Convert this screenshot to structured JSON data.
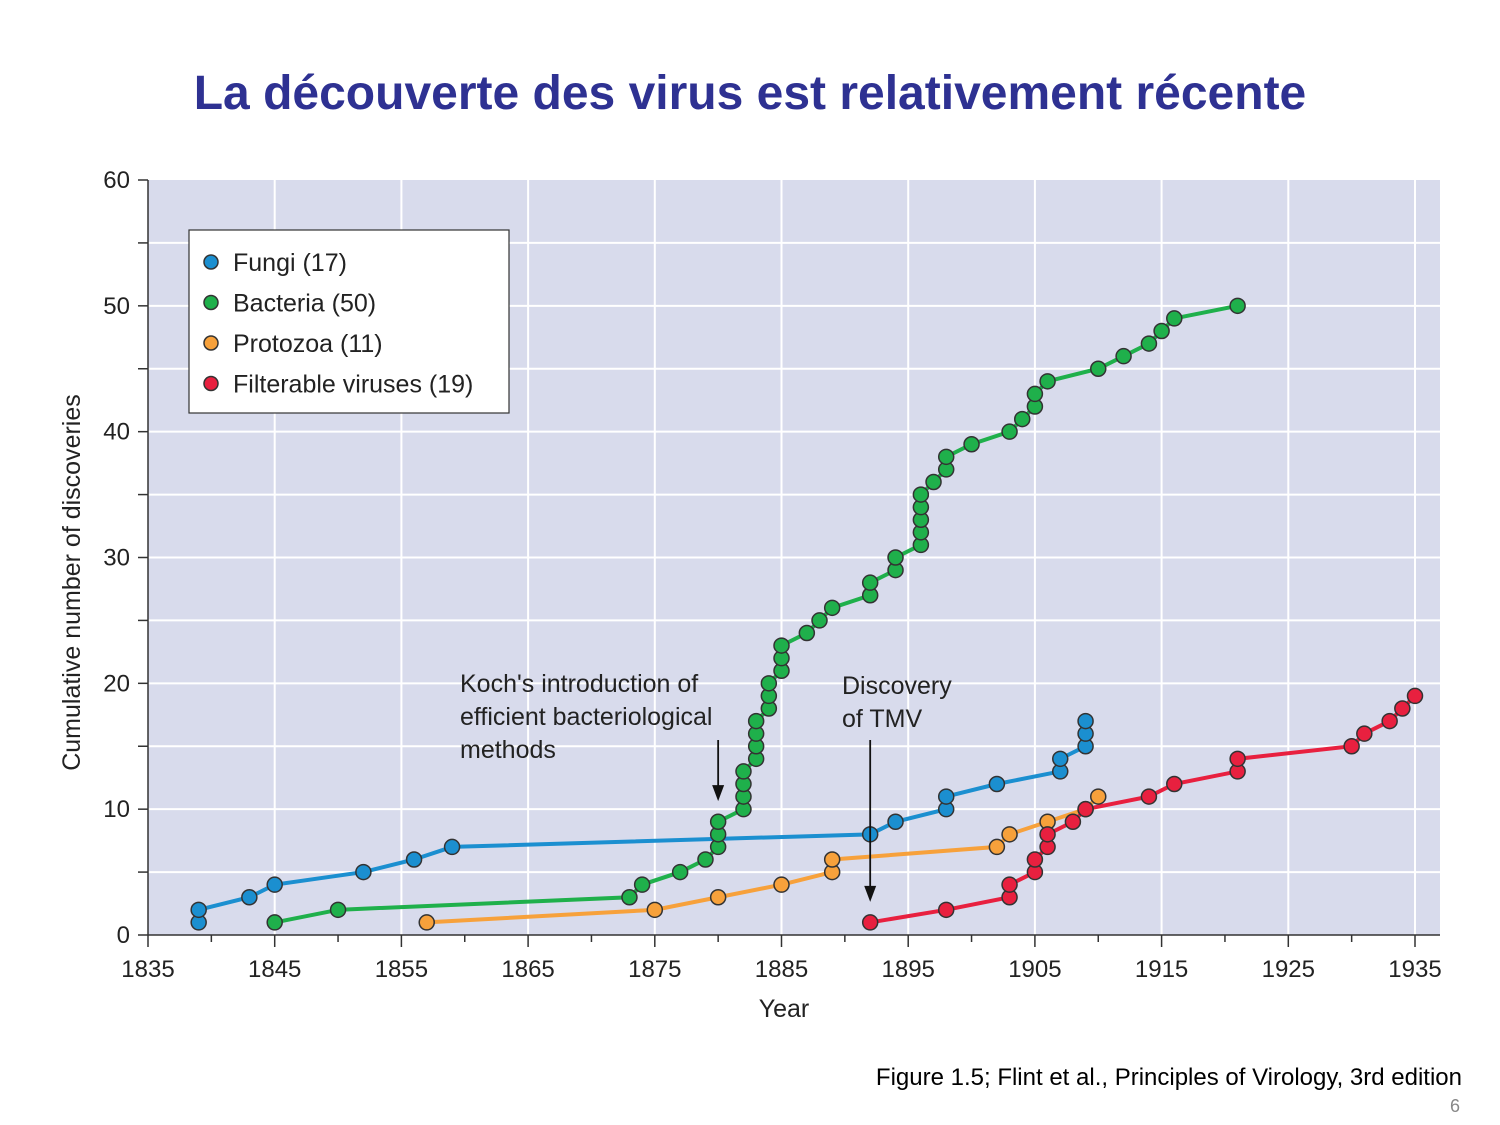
{
  "slide": {
    "title": "La découverte des virus est relativement récente",
    "caption": "Figure 1.5; Flint et al., Principles of Virology, 3rd edition",
    "slide_number": "6"
  },
  "chart_data": {
    "type": "line",
    "xlabel": "Year",
    "ylabel": "Cumulative number of discoveries",
    "xlim": [
      1835,
      1937
    ],
    "ylim": [
      0,
      60
    ],
    "xticks": [
      1835,
      1845,
      1855,
      1865,
      1875,
      1885,
      1895,
      1905,
      1915,
      1925,
      1935
    ],
    "yticks": [
      0,
      10,
      20,
      30,
      40,
      50,
      60
    ],
    "grid": true,
    "background": "#d8dbec",
    "legend_position": "top-left",
    "series": [
      {
        "name": "Fungi (17)",
        "color": "#1b8fd0",
        "points": [
          [
            1839,
            1
          ],
          [
            1839,
            2
          ],
          [
            1843,
            3
          ],
          [
            1845,
            4
          ],
          [
            1852,
            5
          ],
          [
            1856,
            6
          ],
          [
            1859,
            7
          ],
          [
            1892,
            8
          ],
          [
            1894,
            9
          ],
          [
            1898,
            10
          ],
          [
            1898,
            11
          ],
          [
            1902,
            12
          ],
          [
            1907,
            13
          ],
          [
            1907,
            14
          ],
          [
            1909,
            15
          ],
          [
            1909,
            16
          ],
          [
            1909,
            17
          ]
        ]
      },
      {
        "name": "Bacteria (50)",
        "color": "#1fb04b",
        "points": [
          [
            1845,
            1
          ],
          [
            1850,
            2
          ],
          [
            1873,
            3
          ],
          [
            1874,
            4
          ],
          [
            1877,
            5
          ],
          [
            1879,
            6
          ],
          [
            1880,
            7
          ],
          [
            1880,
            8
          ],
          [
            1880,
            9
          ],
          [
            1882,
            10
          ],
          [
            1882,
            11
          ],
          [
            1882,
            12
          ],
          [
            1882,
            13
          ],
          [
            1883,
            14
          ],
          [
            1883,
            15
          ],
          [
            1883,
            16
          ],
          [
            1883,
            17
          ],
          [
            1884,
            18
          ],
          [
            1884,
            19
          ],
          [
            1884,
            20
          ],
          [
            1885,
            21
          ],
          [
            1885,
            22
          ],
          [
            1885,
            23
          ],
          [
            1887,
            24
          ],
          [
            1888,
            25
          ],
          [
            1889,
            26
          ],
          [
            1892,
            27
          ],
          [
            1892,
            28
          ],
          [
            1894,
            29
          ],
          [
            1894,
            30
          ],
          [
            1896,
            31
          ],
          [
            1896,
            32
          ],
          [
            1896,
            33
          ],
          [
            1896,
            34
          ],
          [
            1896,
            35
          ],
          [
            1897,
            36
          ],
          [
            1898,
            37
          ],
          [
            1898,
            38
          ],
          [
            1900,
            39
          ],
          [
            1903,
            40
          ],
          [
            1904,
            41
          ],
          [
            1905,
            42
          ],
          [
            1905,
            43
          ],
          [
            1906,
            44
          ],
          [
            1910,
            45
          ],
          [
            1912,
            46
          ],
          [
            1914,
            47
          ],
          [
            1915,
            48
          ],
          [
            1916,
            49
          ],
          [
            1921,
            50
          ]
        ]
      },
      {
        "name": "Protozoa (11)",
        "color": "#f7a13b",
        "points": [
          [
            1857,
            1
          ],
          [
            1875,
            2
          ],
          [
            1880,
            3
          ],
          [
            1885,
            4
          ],
          [
            1889,
            5
          ],
          [
            1889,
            6
          ],
          [
            1902,
            7
          ],
          [
            1903,
            8
          ],
          [
            1906,
            9
          ],
          [
            1909,
            10
          ],
          [
            1910,
            11
          ]
        ]
      },
      {
        "name": "Filterable viruses (19)",
        "color": "#e8203f",
        "points": [
          [
            1892,
            1
          ],
          [
            1898,
            2
          ],
          [
            1903,
            3
          ],
          [
            1903,
            4
          ],
          [
            1905,
            5
          ],
          [
            1905,
            6
          ],
          [
            1906,
            7
          ],
          [
            1906,
            8
          ],
          [
            1908,
            9
          ],
          [
            1909,
            10
          ],
          [
            1914,
            11
          ],
          [
            1916,
            12
          ],
          [
            1921,
            13
          ],
          [
            1921,
            14
          ],
          [
            1930,
            15
          ],
          [
            1931,
            16
          ],
          [
            1933,
            17
          ],
          [
            1934,
            18
          ],
          [
            1935,
            19
          ]
        ]
      }
    ],
    "annotations": [
      {
        "lines": [
          "Koch's introduction of",
          "efficient bacteriological",
          "methods"
        ],
        "arrow_to": [
          1880,
          10
        ]
      },
      {
        "lines": [
          "Discovery",
          "of TMV"
        ],
        "arrow_to": [
          1892,
          2
        ]
      }
    ]
  }
}
